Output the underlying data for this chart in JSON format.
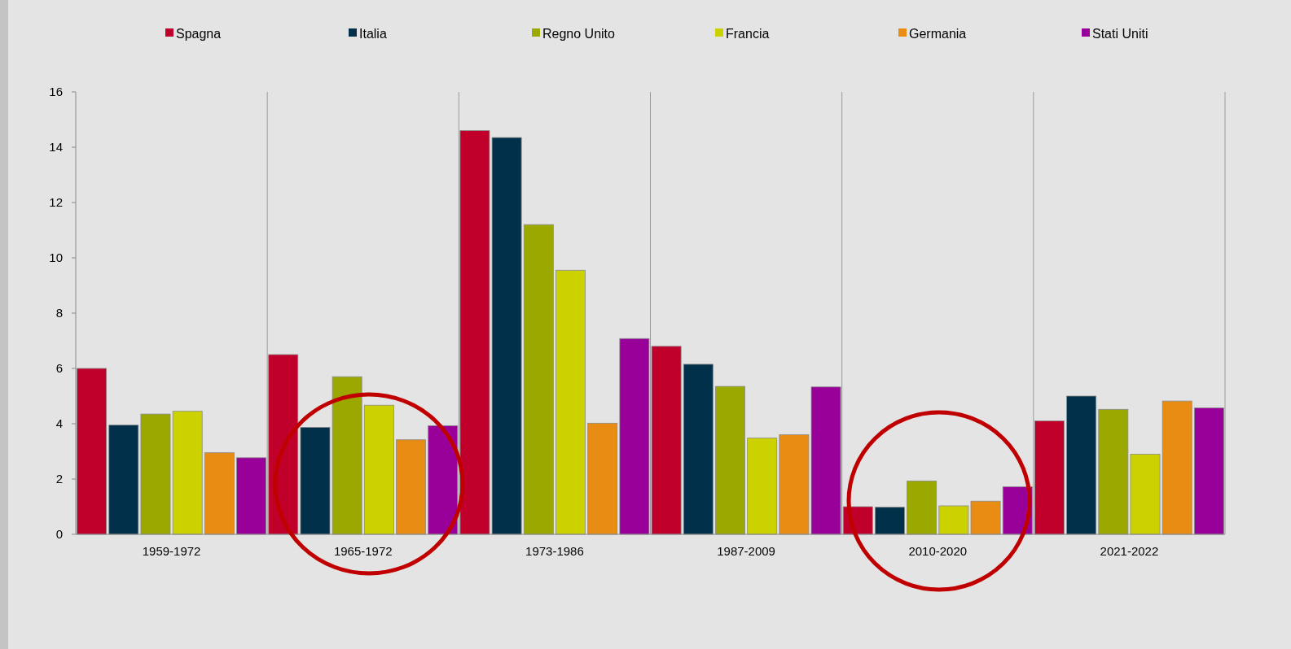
{
  "chart_data": {
    "type": "bar",
    "categories": [
      "1959-1972",
      "1965-1972",
      "1973-1986",
      "1987-2009",
      "2010-2020",
      "2021-2022"
    ],
    "series": [
      {
        "name": "Spagna",
        "color": "#c0002b",
        "values": [
          6.0,
          6.5,
          14.6,
          6.8,
          1.0,
          4.1
        ]
      },
      {
        "name": "Italia",
        "color": "#00304a",
        "values": [
          3.95,
          3.87,
          14.35,
          6.15,
          0.98,
          5.0
        ]
      },
      {
        "name": "Regno Unito",
        "color": "#9aa800",
        "values": [
          4.35,
          5.7,
          11.2,
          5.35,
          1.93,
          4.52
        ]
      },
      {
        "name": "Francia",
        "color": "#ccd200",
        "values": [
          4.45,
          4.67,
          9.55,
          3.48,
          1.03,
          2.9
        ]
      },
      {
        "name": "Germania",
        "color": "#e88c14",
        "values": [
          2.95,
          3.42,
          4.02,
          3.6,
          1.2,
          4.82
        ]
      },
      {
        "name": "Stati Uniti",
        "color": "#990099",
        "values": [
          2.77,
          3.93,
          7.08,
          5.33,
          1.72,
          4.57
        ]
      }
    ],
    "ylim": [
      0,
      16
    ],
    "yticks": [
      0,
      2,
      4,
      6,
      8,
      10,
      12,
      14,
      16
    ],
    "grid": "x",
    "legend": "top"
  }
}
